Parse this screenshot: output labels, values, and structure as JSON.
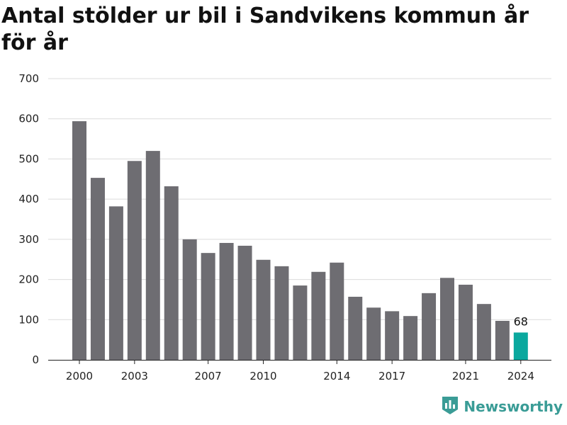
{
  "chart_data": {
    "type": "bar",
    "title": "Antal stölder ur bil i Sandvikens kommun år för år",
    "categories": [
      "2000",
      "2001",
      "2002",
      "2003",
      "2004",
      "2005",
      "2006",
      "2007",
      "2008",
      "2009",
      "2010",
      "2011",
      "2012",
      "2013",
      "2014",
      "2015",
      "2016",
      "2017",
      "2018",
      "2019",
      "2020",
      "2021",
      "2022",
      "2023",
      "2024"
    ],
    "values": [
      594,
      453,
      382,
      495,
      520,
      432,
      300,
      266,
      291,
      284,
      249,
      233,
      185,
      219,
      242,
      157,
      130,
      121,
      109,
      166,
      204,
      187,
      139,
      97,
      68
    ],
    "x_tick_labels": [
      "2000",
      "2003",
      "2007",
      "2010",
      "2014",
      "2017",
      "2021",
      "2024"
    ],
    "y_ticks": [
      "0",
      "100",
      "200",
      "300",
      "400",
      "500",
      "600",
      "700"
    ],
    "ylim": [
      0,
      700
    ],
    "grid": true,
    "bar_color": "#6e6d72",
    "highlight_color": "#0aa89e",
    "highlight_index": 24,
    "data_labels": [
      {
        "index": 24,
        "text": "68"
      }
    ]
  },
  "brand": {
    "name": "Newsworthy",
    "color": "#3a9c96",
    "icon": "bar-chart-shield-icon"
  }
}
